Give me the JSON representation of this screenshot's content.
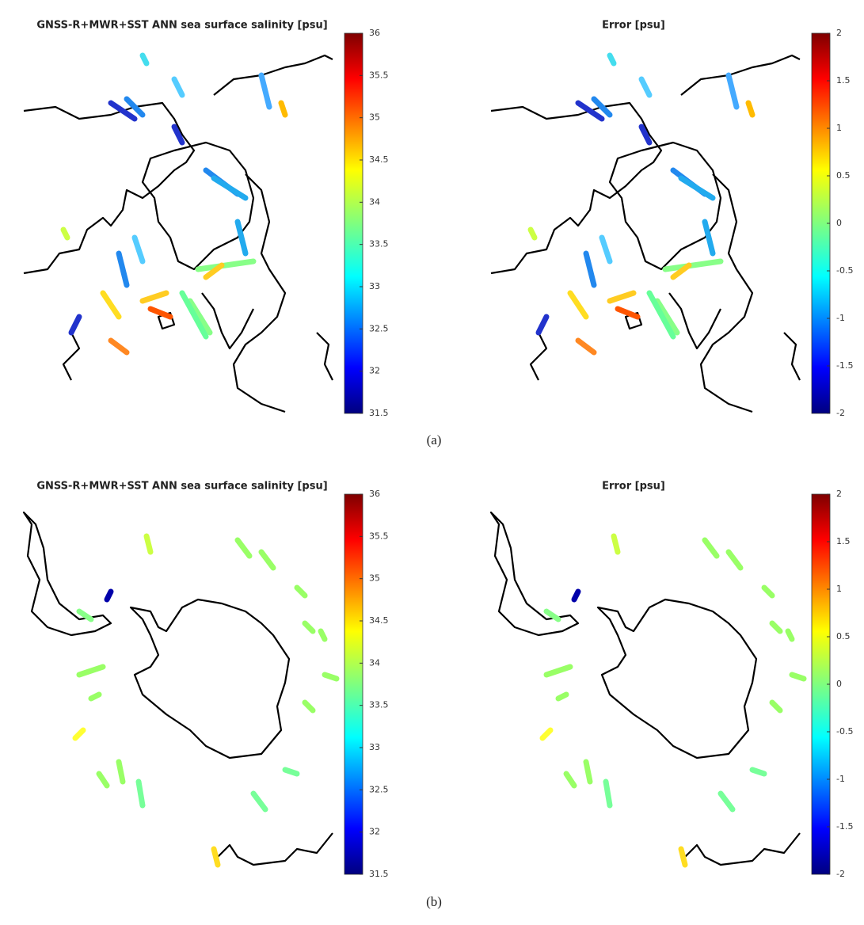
{
  "chart_data": [
    {
      "type": "map",
      "title": "GNSS-R+MWR+SST ANN sea surface salinity [psu]",
      "clim": [
        31.5,
        36
      ],
      "cticks": [
        31.5,
        32,
        32.5,
        33,
        33.5,
        34,
        34.5,
        35,
        35.5,
        36
      ]
    },
    {
      "type": "map",
      "title": "Error [psu]",
      "clim": [
        -2,
        2
      ],
      "cticks": [
        -2,
        -1.5,
        -1,
        -0.5,
        0,
        0.5,
        1,
        1.5,
        2
      ]
    },
    {
      "type": "map",
      "title": "GNSS-R+MWR+SST ANN sea surface salinity [psu]",
      "clim": [
        31.5,
        36
      ],
      "cticks": [
        31.5,
        32,
        32.5,
        33,
        33.5,
        34,
        34.5,
        35,
        35.5,
        36
      ]
    },
    {
      "type": "map",
      "title": "Error [psu]",
      "clim": [
        -2,
        2
      ],
      "cticks": [
        -2,
        -1.5,
        -1,
        -0.5,
        0,
        0.5,
        1,
        1.5,
        2
      ]
    }
  ],
  "captions": [
    "(a)",
    "(b)"
  ]
}
